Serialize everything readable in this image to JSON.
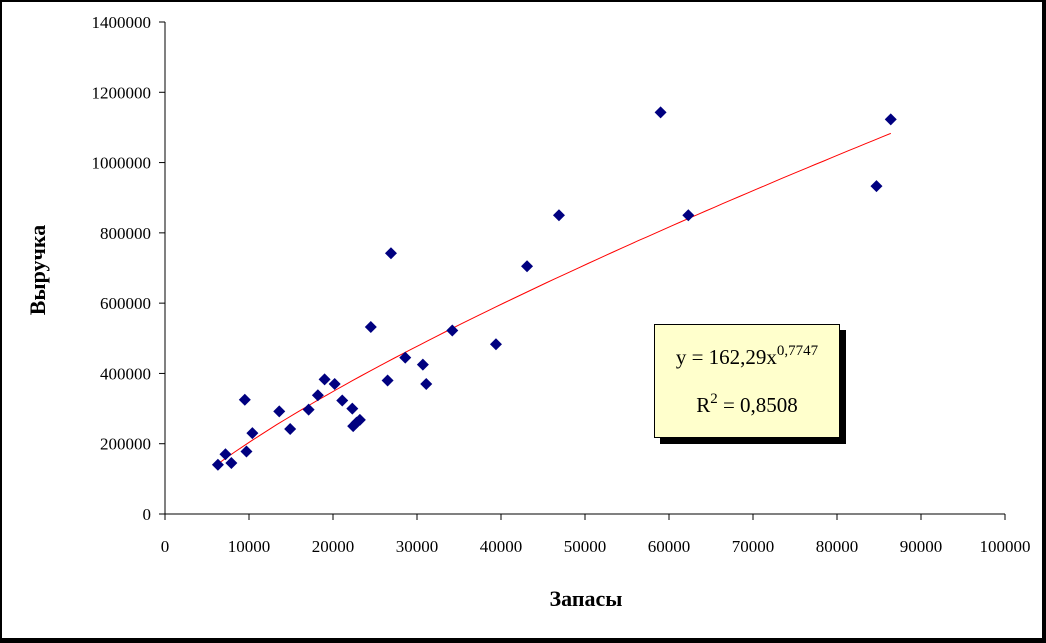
{
  "chart_data": {
    "type": "scatter",
    "xlabel": "Запасы",
    "ylabel": "Выручка",
    "xlim": [
      0,
      100000
    ],
    "ylim": [
      0,
      1400000
    ],
    "x_ticks": [
      "0",
      "10000",
      "20000",
      "30000",
      "40000",
      "50000",
      "60000",
      "70000",
      "80000",
      "90000",
      "100000"
    ],
    "y_ticks": [
      "0",
      "200000",
      "400000",
      "600000",
      "800000",
      "1000000",
      "1200000",
      "1400000"
    ],
    "grid": false,
    "colors": {
      "points": "#000080",
      "trendline": "#ff0000",
      "equation_box": "#ffffcc"
    },
    "points": [
      {
        "x": 6300,
        "y": 140000
      },
      {
        "x": 7200,
        "y": 170000
      },
      {
        "x": 7900,
        "y": 145000
      },
      {
        "x": 9500,
        "y": 325000
      },
      {
        "x": 9700,
        "y": 178000
      },
      {
        "x": 10400,
        "y": 230000
      },
      {
        "x": 13600,
        "y": 292000
      },
      {
        "x": 14900,
        "y": 242000
      },
      {
        "x": 17100,
        "y": 297000
      },
      {
        "x": 18200,
        "y": 338000
      },
      {
        "x": 19000,
        "y": 383000
      },
      {
        "x": 20200,
        "y": 370000
      },
      {
        "x": 21100,
        "y": 323000
      },
      {
        "x": 22300,
        "y": 300000
      },
      {
        "x": 22400,
        "y": 250000
      },
      {
        "x": 22800,
        "y": 260000
      },
      {
        "x": 23200,
        "y": 268000
      },
      {
        "x": 24500,
        "y": 532000
      },
      {
        "x": 26500,
        "y": 380000
      },
      {
        "x": 26900,
        "y": 742000
      },
      {
        "x": 28600,
        "y": 445000
      },
      {
        "x": 30700,
        "y": 425000
      },
      {
        "x": 31100,
        "y": 370000
      },
      {
        "x": 34200,
        "y": 522000
      },
      {
        "x": 39400,
        "y": 483000
      },
      {
        "x": 43100,
        "y": 705000
      },
      {
        "x": 46900,
        "y": 850000
      },
      {
        "x": 59000,
        "y": 1143000
      },
      {
        "x": 62300,
        "y": 850000
      },
      {
        "x": 84700,
        "y": 933000
      },
      {
        "x": 86400,
        "y": 1123000
      }
    ],
    "trendline": {
      "type": "power",
      "coefficient": 162.29,
      "exponent": 0.7747,
      "x_range": [
        6300,
        86400
      ],
      "equation_prefix": "y = 162,29x",
      "equation_exponent": "0,7747",
      "r2_prefix": "R",
      "r2_exponent": "2",
      "r2_suffix": " = 0,8508"
    }
  }
}
